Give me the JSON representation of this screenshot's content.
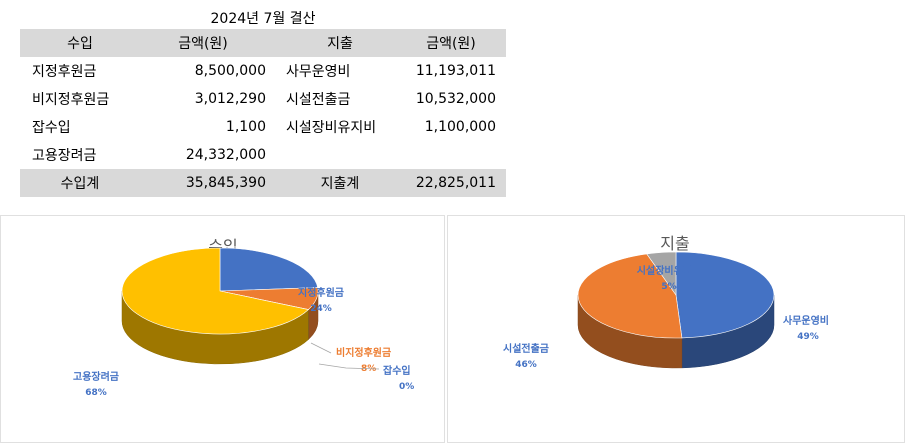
{
  "report": {
    "title": "2024년 7월 결산",
    "headers": {
      "income": "수입",
      "income_amount": "금액(원)",
      "expense": "지출",
      "expense_amount": "금액(원)"
    },
    "rows": [
      {
        "income": "지정후원금",
        "income_amount": "8,500,000",
        "expense": "사무운영비",
        "expense_amount": "11,193,011"
      },
      {
        "income": "비지정후원금",
        "income_amount": "3,012,290",
        "expense": "시설전출금",
        "expense_amount": "10,532,000"
      },
      {
        "income": "잡수입",
        "income_amount": "1,100",
        "expense": "시설장비유지비",
        "expense_amount": "1,100,000"
      },
      {
        "income": "고용장려금",
        "income_amount": "24,332,000",
        "expense": "",
        "expense_amount": ""
      }
    ],
    "totals": {
      "income_label": "수입계",
      "income_total": "35,845,390",
      "expense_label": "지출계",
      "expense_total": "22,825,011"
    }
  },
  "chart_data": [
    {
      "type": "pie",
      "title": "수입",
      "labels": [
        "지정후원금",
        "비지정후원금",
        "잡수입",
        "고용장려금"
      ],
      "values": [
        8500000,
        3012290,
        1100,
        24332000
      ],
      "percent_labels": [
        "24%",
        "8%",
        "0%",
        "68%"
      ],
      "colors": [
        "#4472c4",
        "#ed7d31",
        "#a5a5a5",
        "#ffc000"
      ],
      "label_colors": [
        "#4472c4",
        "#ed7d31",
        "#4472c4",
        "#4472c4"
      ]
    },
    {
      "type": "pie",
      "title": "지출",
      "labels": [
        "사무운영비",
        "시설전출금",
        "시설장비유지비"
      ],
      "values": [
        11193011,
        10532000,
        1100000
      ],
      "percent_labels": [
        "49%",
        "46%",
        "5%"
      ],
      "colors": [
        "#4472c4",
        "#ed7d31",
        "#a5a5a5"
      ],
      "label_colors": [
        "#4472c4",
        "#4472c4",
        "#4472c4"
      ]
    }
  ]
}
